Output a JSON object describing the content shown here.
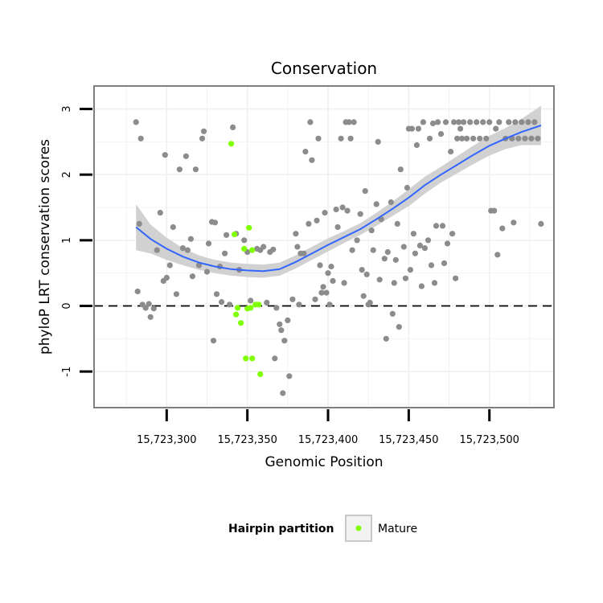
{
  "chart_data": {
    "type": "scatter",
    "title": "Conservation",
    "xlabel": "Genomic Position",
    "ylabel": "phyloP LRT conservation scores",
    "xlim": [
      15723255,
      15723540
    ],
    "ylim": [
      -1.55,
      3.35
    ],
    "x_ticks": [
      15723300,
      15723350,
      15723400,
      15723450,
      15723500
    ],
    "x_tick_labels": [
      "15,723,300",
      "15,723,350",
      "15,723,400",
      "15,723,450",
      "15,723,500"
    ],
    "y_ticks": [
      -1,
      0,
      1,
      2,
      3
    ],
    "y_tick_labels": [
      "-1",
      "0",
      "1",
      "2",
      "3"
    ],
    "grid": true,
    "reference_line": {
      "y": 0,
      "style": "dashed",
      "color": "#000000"
    },
    "legend": {
      "title": "Hairpin partition",
      "placement": "bottom",
      "entries": [
        {
          "label": "Mature",
          "color": "#7fff00"
        }
      ]
    },
    "colors": {
      "points": "#8c8c8c",
      "mature": "#7fff00",
      "smooth": "#3366ff",
      "ribbon": "#cfcfcf",
      "panel_border": "#7f7f7f",
      "grid": "#f0f0f0"
    },
    "series": [
      {
        "color": "#8c8c8c",
        "points": [
          [
            15723281,
            2.8
          ],
          [
            15723283,
            1.25
          ],
          [
            15723282,
            0.22
          ],
          [
            15723284,
            2.55
          ],
          [
            15723285,
            0.02
          ],
          [
            15723287,
            -0.03
          ],
          [
            15723289,
            0.03
          ],
          [
            15723290,
            -0.17
          ],
          [
            15723292,
            -0.04
          ],
          [
            15723294,
            0.85
          ],
          [
            15723296,
            1.42
          ],
          [
            15723298,
            0.38
          ],
          [
            15723299,
            2.3
          ],
          [
            15723300,
            0.43
          ],
          [
            15723302,
            0.62
          ],
          [
            15723304,
            1.2
          ],
          [
            15723306,
            0.18
          ],
          [
            15723308,
            2.08
          ],
          [
            15723310,
            0.88
          ],
          [
            15723312,
            2.28
          ],
          [
            15723313,
            0.85
          ],
          [
            15723315,
            1.02
          ],
          [
            15723316,
            0.45
          ],
          [
            15723318,
            2.08
          ],
          [
            15723320,
            0.62
          ],
          [
            15723322,
            2.55
          ],
          [
            15723323,
            2.66
          ],
          [
            15723325,
            0.52
          ],
          [
            15723326,
            0.95
          ],
          [
            15723328,
            1.28
          ],
          [
            15723330,
            1.27
          ],
          [
            15723331,
            0.18
          ],
          [
            15723329,
            -0.53
          ],
          [
            15723333,
            0.6
          ],
          [
            15723334,
            0.06
          ],
          [
            15723336,
            0.8
          ],
          [
            15723337,
            1.08
          ],
          [
            15723339,
            0.02
          ],
          [
            15723341,
            2.72
          ],
          [
            15723343,
            1.1
          ],
          [
            15723345,
            0.55
          ],
          [
            15723348,
            1.0
          ],
          [
            15723350,
            0.82
          ],
          [
            15723352,
            0.08
          ],
          [
            15723356,
            0.87
          ],
          [
            15723358,
            0.85
          ],
          [
            15723360,
            0.9
          ],
          [
            15723362,
            0.05
          ],
          [
            15723364,
            0.82
          ],
          [
            15723366,
            0.86
          ],
          [
            15723367,
            -0.8
          ],
          [
            15723368,
            -0.03
          ],
          [
            15723370,
            -0.28
          ],
          [
            15723371,
            -0.37
          ],
          [
            15723372,
            -1.33
          ],
          [
            15723373,
            -0.53
          ],
          [
            15723375,
            -0.22
          ],
          [
            15723376,
            -1.07
          ],
          [
            15723378,
            0.1
          ],
          [
            15723380,
            1.1
          ],
          [
            15723381,
            0.9
          ],
          [
            15723382,
            0.02
          ],
          [
            15723383,
            0.8
          ],
          [
            15723385,
            0.8
          ],
          [
            15723386,
            2.35
          ],
          [
            15723388,
            1.25
          ],
          [
            15723389,
            2.8
          ],
          [
            15723390,
            2.22
          ],
          [
            15723392,
            0.1
          ],
          [
            15723393,
            1.3
          ],
          [
            15723394,
            2.55
          ],
          [
            15723395,
            0.62
          ],
          [
            15723396,
            0.2
          ],
          [
            15723397,
            0.29
          ],
          [
            15723398,
            1.42
          ],
          [
            15723399,
            0.2
          ],
          [
            15723400,
            0.5
          ],
          [
            15723401,
            0.02
          ],
          [
            15723402,
            0.6
          ],
          [
            15723403,
            0.38
          ],
          [
            15723405,
            1.47
          ],
          [
            15723406,
            1.2
          ],
          [
            15723408,
            2.55
          ],
          [
            15723409,
            1.5
          ],
          [
            15723410,
            0.35
          ],
          [
            15723411,
            2.8
          ],
          [
            15723412,
            1.45
          ],
          [
            15723413,
            2.8
          ],
          [
            15723414,
            2.55
          ],
          [
            15723415,
            0.85
          ],
          [
            15723416,
            2.8
          ],
          [
            15723418,
            1.0
          ],
          [
            15723420,
            1.4
          ],
          [
            15723421,
            0.55
          ],
          [
            15723422,
            0.15
          ],
          [
            15723423,
            1.75
          ],
          [
            15723424,
            0.48
          ],
          [
            15723425,
            0.02
          ],
          [
            15723426,
            0.05
          ],
          [
            15723427,
            1.15
          ],
          [
            15723428,
            0.85
          ],
          [
            15723430,
            1.55
          ],
          [
            15723431,
            2.5
          ],
          [
            15723432,
            0.4
          ],
          [
            15723433,
            1.32
          ],
          [
            15723435,
            0.72
          ],
          [
            15723436,
            -0.5
          ],
          [
            15723437,
            0.82
          ],
          [
            15723439,
            1.58
          ],
          [
            15723440,
            -0.12
          ],
          [
            15723441,
            0.35
          ],
          [
            15723442,
            0.7
          ],
          [
            15723443,
            1.25
          ],
          [
            15723444,
            -0.32
          ],
          [
            15723445,
            2.08
          ],
          [
            15723447,
            0.9
          ],
          [
            15723448,
            0.42
          ],
          [
            15723449,
            1.8
          ],
          [
            15723450,
            2.7
          ],
          [
            15723451,
            0.55
          ],
          [
            15723452,
            2.7
          ],
          [
            15723453,
            1.1
          ],
          [
            15723454,
            0.8
          ],
          [
            15723455,
            2.45
          ],
          [
            15723456,
            2.7
          ],
          [
            15723457,
            0.92
          ],
          [
            15723458,
            0.3
          ],
          [
            15723459,
            2.8
          ],
          [
            15723460,
            0.88
          ],
          [
            15723462,
            1.0
          ],
          [
            15723463,
            2.55
          ],
          [
            15723464,
            0.62
          ],
          [
            15723465,
            2.78
          ],
          [
            15723466,
            0.35
          ],
          [
            15723467,
            1.22
          ],
          [
            15723468,
            2.8
          ],
          [
            15723470,
            2.62
          ],
          [
            15723471,
            1.22
          ],
          [
            15723472,
            0.65
          ],
          [
            15723473,
            2.8
          ],
          [
            15723474,
            0.95
          ],
          [
            15723476,
            2.35
          ],
          [
            15723477,
            1.1
          ],
          [
            15723478,
            2.8
          ],
          [
            15723479,
            0.42
          ],
          [
            15723480,
            2.55
          ],
          [
            15723481,
            2.8
          ],
          [
            15723482,
            2.7
          ],
          [
            15723483,
            2.55
          ],
          [
            15723484,
            2.8
          ],
          [
            15723486,
            2.55
          ],
          [
            15723488,
            2.8
          ],
          [
            15723490,
            2.55
          ],
          [
            15723492,
            2.8
          ],
          [
            15723494,
            2.55
          ],
          [
            15723496,
            2.8
          ],
          [
            15723498,
            2.55
          ],
          [
            15723500,
            2.8
          ],
          [
            15723501,
            1.45
          ],
          [
            15723503,
            1.45
          ],
          [
            15723504,
            2.7
          ],
          [
            15723505,
            0.78
          ],
          [
            15723506,
            2.8
          ],
          [
            15723508,
            1.18
          ],
          [
            15723510,
            2.55
          ],
          [
            15723512,
            2.8
          ],
          [
            15723514,
            2.55
          ],
          [
            15723515,
            1.27
          ],
          [
            15723516,
            2.8
          ],
          [
            15723518,
            2.55
          ],
          [
            15723520,
            2.8
          ],
          [
            15723522,
            2.55
          ],
          [
            15723524,
            2.8
          ],
          [
            15723526,
            2.55
          ],
          [
            15723528,
            2.8
          ],
          [
            15723530,
            2.55
          ],
          [
            15723532,
            1.25
          ]
        ]
      },
      {
        "name": "Mature",
        "color": "#7fff00",
        "points": [
          [
            15723340,
            2.47
          ],
          [
            15723342,
            1.09
          ],
          [
            15723351,
            1.19
          ],
          [
            15723353,
            0.85
          ],
          [
            15723348,
            0.87
          ],
          [
            15723343,
            -0.13
          ],
          [
            15723344,
            -0.03
          ],
          [
            15723346,
            -0.26
          ],
          [
            15723350,
            -0.04
          ],
          [
            15723352,
            -0.03
          ],
          [
            15723355,
            0.02
          ],
          [
            15723357,
            0.02
          ],
          [
            15723349,
            -0.8
          ],
          [
            15723353,
            -0.8
          ],
          [
            15723358,
            -1.04
          ]
        ]
      }
    ],
    "smooth": {
      "x": [
        15723281,
        15723290,
        15723300,
        15723310,
        15723320,
        15723330,
        15723340,
        15723350,
        15723360,
        15723370,
        15723380,
        15723390,
        15723400,
        15723410,
        15723420,
        15723430,
        15723440,
        15723450,
        15723460,
        15723470,
        15723480,
        15723490,
        15723500,
        15723510,
        15723520,
        15723532
      ],
      "y": [
        1.2,
        1.02,
        0.87,
        0.75,
        0.66,
        0.6,
        0.56,
        0.54,
        0.53,
        0.56,
        0.67,
        0.8,
        0.93,
        1.05,
        1.17,
        1.32,
        1.48,
        1.65,
        1.84,
        2.0,
        2.15,
        2.3,
        2.44,
        2.55,
        2.65,
        2.75
      ],
      "lower": [
        0.85,
        0.8,
        0.7,
        0.62,
        0.55,
        0.5,
        0.46,
        0.44,
        0.43,
        0.46,
        0.57,
        0.7,
        0.83,
        0.96,
        1.08,
        1.22,
        1.37,
        1.52,
        1.71,
        1.88,
        2.02,
        2.16,
        2.29,
        2.39,
        2.45,
        2.45
      ],
      "upper": [
        1.55,
        1.24,
        1.04,
        0.88,
        0.77,
        0.7,
        0.66,
        0.64,
        0.63,
        0.66,
        0.77,
        0.9,
        1.03,
        1.14,
        1.26,
        1.42,
        1.59,
        1.78,
        1.97,
        2.12,
        2.28,
        2.44,
        2.59,
        2.71,
        2.85,
        3.05
      ]
    }
  }
}
